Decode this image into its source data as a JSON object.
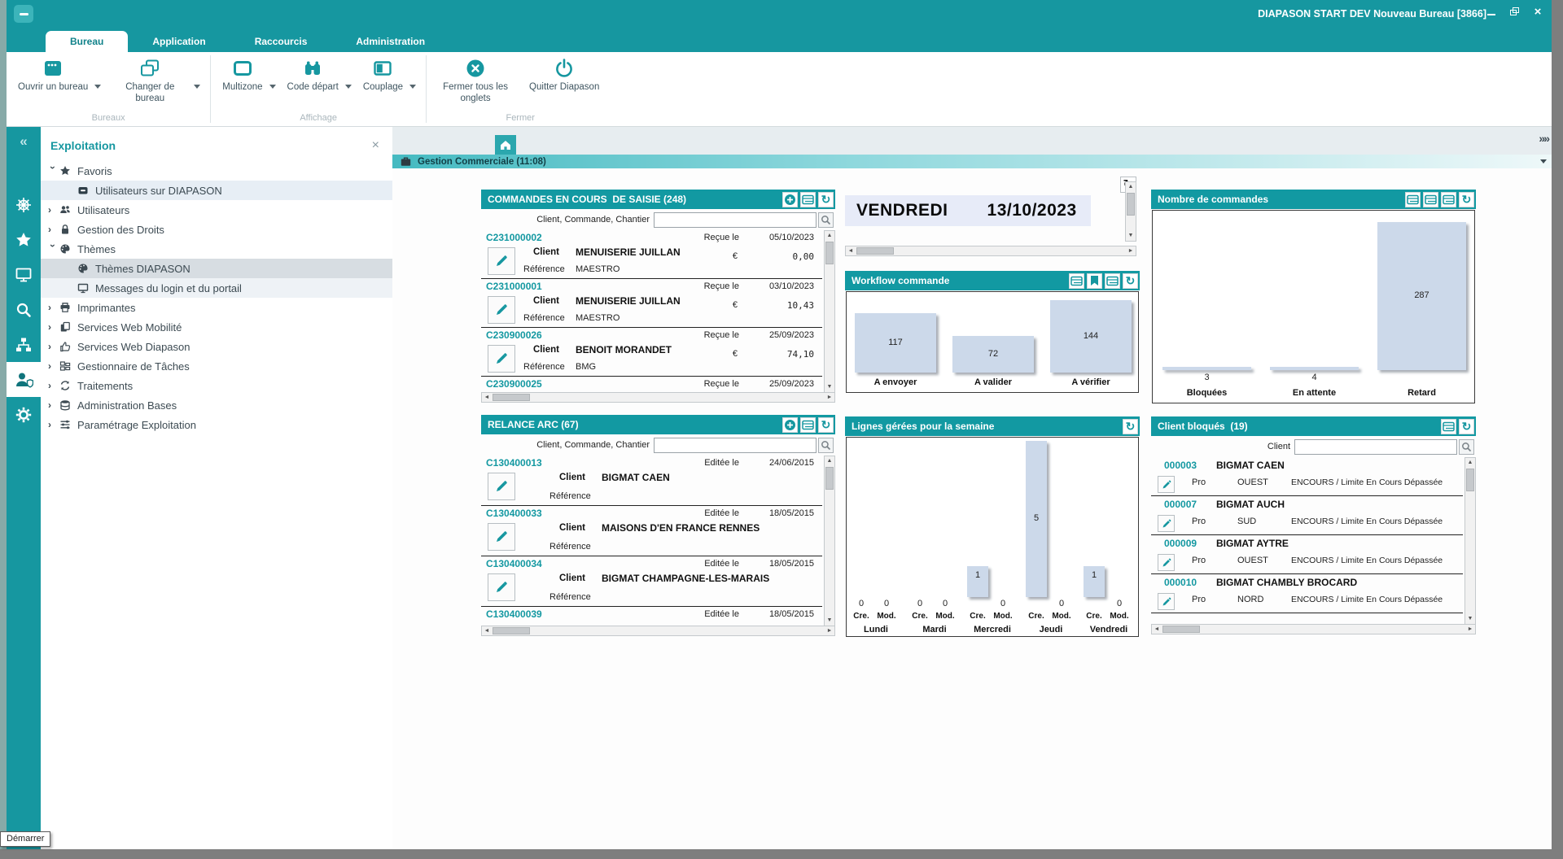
{
  "window": {
    "title": "DIAPASON START DEV Nouveau Bureau [3866]"
  },
  "ribbon": {
    "tabs": [
      {
        "label": "Bureau",
        "active": true
      },
      {
        "label": "Application",
        "active": false
      },
      {
        "label": "Raccourcis",
        "active": false
      },
      {
        "label": "Administration",
        "active": false
      }
    ],
    "groups": [
      {
        "label": "Bureaux",
        "buttons": [
          {
            "label": "Ouvrir un bureau",
            "icon": "open-desktop-icon",
            "dropdown": true
          },
          {
            "label": "Changer de bureau",
            "icon": "switch-desktop-icon",
            "dropdown": true
          }
        ]
      },
      {
        "label": "Affichage",
        "buttons": [
          {
            "label": "Multizone",
            "icon": "multizone-icon",
            "dropdown": true
          },
          {
            "label": "Code départ",
            "icon": "binoculars-icon",
            "dropdown": true
          },
          {
            "label": "Couplage",
            "icon": "couplage-icon",
            "dropdown": true
          }
        ]
      },
      {
        "label": "Fermer",
        "buttons": [
          {
            "label": "Fermer tous les onglets",
            "icon": "close-circle-icon",
            "dropdown": false
          },
          {
            "label": "Quitter Diapason",
            "icon": "power-icon",
            "dropdown": false
          }
        ]
      }
    ]
  },
  "rail": {
    "items": [
      {
        "icon": "wheel-icon",
        "active": false
      },
      {
        "icon": "star-icon",
        "active": false
      },
      {
        "icon": "monitor-icon",
        "active": false
      },
      {
        "icon": "search-icon",
        "active": false
      },
      {
        "icon": "sitemap-icon",
        "active": false
      },
      {
        "icon": "user-shield-icon",
        "active": true
      },
      {
        "icon": "gear-icon",
        "active": false
      }
    ]
  },
  "tree": {
    "title": "Exploitation",
    "items": [
      {
        "label": "Favoris",
        "icon": "star",
        "level": 0,
        "expander": "open",
        "highlight": null
      },
      {
        "label": "Utilisateurs sur DIAPASON",
        "icon": "badge",
        "level": 1,
        "expander": null,
        "highlight": "blue"
      },
      {
        "label": "Utilisateurs",
        "icon": "users",
        "level": 0,
        "expander": "closed",
        "highlight": null
      },
      {
        "label": "Gestion des Droits",
        "icon": "lock",
        "level": 0,
        "expander": "closed",
        "highlight": null
      },
      {
        "label": "Thèmes",
        "icon": "palette",
        "level": 0,
        "expander": "open",
        "highlight": null
      },
      {
        "label": "Thèmes DIAPASON",
        "icon": "palette",
        "level": 1,
        "expander": null,
        "highlight": "gray"
      },
      {
        "label": "Messages du login et du portail",
        "icon": "monitor",
        "level": 1,
        "expander": null,
        "highlight": "faint"
      },
      {
        "label": "Imprimantes",
        "icon": "printer",
        "level": 0,
        "expander": "closed",
        "highlight": null
      },
      {
        "label": "Services Web Mobilité",
        "icon": "pages",
        "level": 0,
        "expander": "closed",
        "highlight": null
      },
      {
        "label": "Services Web Diapason",
        "icon": "thumb",
        "level": 0,
        "expander": "closed",
        "highlight": null
      },
      {
        "label": "Gestionnaire de Tâches",
        "icon": "kanban",
        "level": 0,
        "expander": "closed",
        "highlight": null
      },
      {
        "label": "Traitements",
        "icon": "sync",
        "level": 0,
        "expander": "closed",
        "highlight": null
      },
      {
        "label": "Administration Bases",
        "icon": "database",
        "level": 0,
        "expander": "closed",
        "highlight": null
      },
      {
        "label": "Paramétrage Exploitation",
        "icon": "sliders",
        "level": 0,
        "expander": "closed",
        "highlight": null
      }
    ]
  },
  "tabbar": {
    "doc_tab": "Gestion Commerciale (11:08)"
  },
  "panels": {
    "commandes": {
      "title": "COMMANDES EN COURS  DE SAISIE (248)",
      "header_buttons": [
        "add",
        "table",
        "refresh"
      ],
      "filter_label": "Client, Commande, Chantier",
      "filter_value": "",
      "date_label": "Reçue le",
      "client_label": "Client",
      "reference_label": "Référence",
      "currency_label": "€",
      "rows": [
        {
          "code": "C231000002",
          "client": "MENUISERIE JUILLAN",
          "reference": "MAESTRO",
          "date": "05/10/2023",
          "amount": "0,00"
        },
        {
          "code": "C231000001",
          "client": "MENUISERIE JUILLAN",
          "reference": "MAESTRO",
          "date": "03/10/2023",
          "amount": "10,43"
        },
        {
          "code": "C230900026",
          "client": "BENOIT MORANDET",
          "reference": "BMG",
          "date": "25/09/2023",
          "amount": "74,10"
        },
        {
          "code": "C230900025",
          "client": "",
          "reference": "",
          "date": "25/09/2023",
          "amount": ""
        }
      ]
    },
    "relance": {
      "title": "RELANCE ARC (67)",
      "header_buttons": [
        "add",
        "table",
        "refresh"
      ],
      "filter_label": "Client, Commande, Chantier",
      "filter_value": "",
      "date_label": "Editée le",
      "client_label": "Client",
      "reference_label": "Référence",
      "rows": [
        {
          "code": "C130400013",
          "client": "BIGMAT CAEN",
          "reference": "",
          "date": "24/06/2015"
        },
        {
          "code": "C130400033",
          "client": "MAISONS D'EN FRANCE RENNES",
          "reference": "",
          "date": "18/05/2015"
        },
        {
          "code": "C130400034",
          "client": "BIGMAT CHAMPAGNE-LES-MARAIS",
          "reference": "",
          "date": "18/05/2015"
        },
        {
          "code": "C130400039",
          "client": "",
          "reference": "",
          "date": "18/05/2015"
        }
      ]
    },
    "date_widget": {
      "day": "VENDREDI",
      "date": "13/10/2023",
      "header_buttons": [
        "refresh"
      ]
    },
    "workflow": {
      "title": "Workflow commande",
      "header_buttons": [
        "table",
        "bookmark",
        "table",
        "refresh"
      ]
    },
    "nombre": {
      "title": "Nombre de commandes",
      "header_buttons": [
        "table",
        "table",
        "table",
        "refresh"
      ]
    },
    "lignes": {
      "title": "Lignes gérées pour la semaine",
      "header_buttons": [
        "refresh"
      ]
    },
    "clients": {
      "title": "Client bloqués  (19)",
      "header_buttons": [
        "table",
        "refresh"
      ],
      "filter_label": "Client",
      "filter_value": "",
      "rows": [
        {
          "code": "000003",
          "name": "BIGMAT CAEN",
          "type": "Pro",
          "region": "OUEST",
          "status": "ENCOURS / Limite En Cours Dépassée"
        },
        {
          "code": "000007",
          "name": "BIGMAT AUCH",
          "type": "Pro",
          "region": "SUD",
          "status": "ENCOURS / Limite En Cours Dépassée"
        },
        {
          "code": "000009",
          "name": "BIGMAT AYTRE",
          "type": "Pro",
          "region": "OUEST",
          "status": "ENCOURS / Limite En Cours Dépassée"
        },
        {
          "code": "000010",
          "name": "BIGMAT CHAMBLY BROCARD",
          "type": "Pro",
          "region": "NORD",
          "status": "ENCOURS / Limite En Cours Dépassée"
        }
      ]
    }
  },
  "chart_data": [
    {
      "id": "workflow",
      "type": "bar",
      "title": "Workflow commande",
      "categories": [
        "A envoyer",
        "A valider",
        "A vérifier"
      ],
      "values": [
        117,
        72,
        144
      ],
      "xlabel": "",
      "ylabel": "",
      "ylim": [
        0,
        150
      ],
      "grid": false,
      "legend": false,
      "bar_color": "#ccd9ea"
    },
    {
      "id": "nombre",
      "type": "bar",
      "title": "Nombre de commandes",
      "categories": [
        "Bloquées",
        "En attente",
        "Retard"
      ],
      "values": [
        3,
        4,
        287
      ],
      "xlabel": "",
      "ylabel": "",
      "ylim": [
        0,
        300
      ],
      "grid": false,
      "legend": false,
      "bar_color": "#ccd9ea"
    },
    {
      "id": "lignes",
      "type": "bar",
      "title": "Lignes gérées pour la semaine",
      "categories": [
        "Lundi",
        "Mardi",
        "Mercredi",
        "Jeudi",
        "Vendredi"
      ],
      "series": [
        {
          "name": "Cre.",
          "values": [
            0,
            0,
            1,
            5,
            1
          ]
        },
        {
          "name": "Mod.",
          "values": [
            0,
            0,
            0,
            0,
            0
          ]
        }
      ],
      "xlabel": "",
      "ylabel": "",
      "ylim": [
        0,
        5
      ],
      "grid": false,
      "legend": false,
      "bar_color": "#ccd9ea"
    }
  ],
  "tooltip": "Démarrer",
  "colors": {
    "accent": "#1697a0",
    "bar_fill": "#ccd9ea",
    "code_link": "#1398a1",
    "date_banner": "#e7ebf8"
  }
}
